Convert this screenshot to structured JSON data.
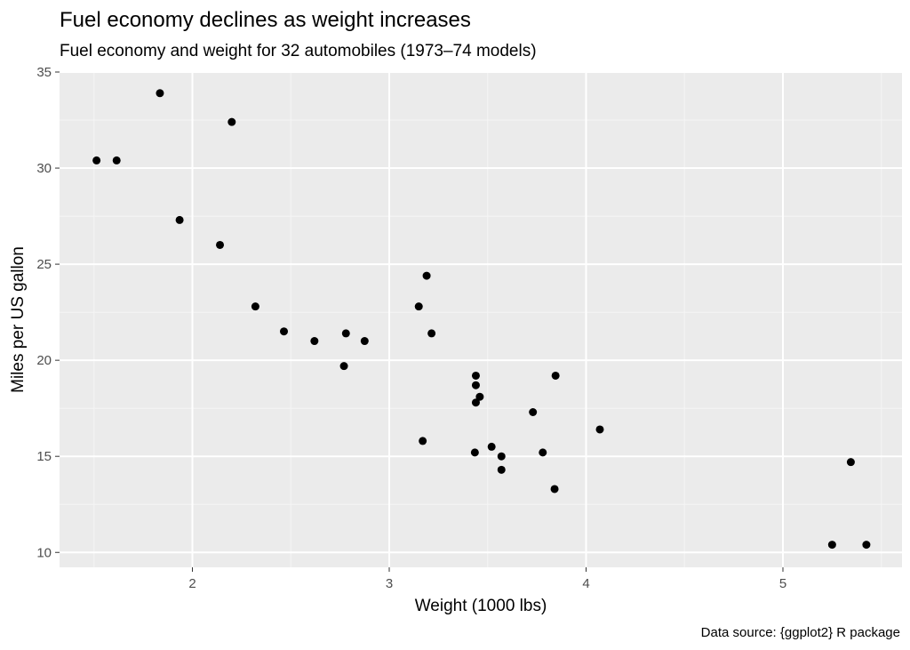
{
  "chart_data": {
    "type": "scatter",
    "title": "Fuel economy declines as weight increases",
    "subtitle": "Fuel economy and weight for 32 automobiles (1973–74 models)",
    "xlabel": "Weight (1000 lbs)",
    "ylabel": "Miles per US gallon",
    "caption": "Data source: {ggplot2} R package",
    "xlim": [
      1.325,
      5.605
    ],
    "ylim": [
      9.225,
      35.0
    ],
    "x_ticks": [
      2,
      3,
      4,
      5
    ],
    "x_tick_labels": [
      "2",
      "3",
      "4",
      "5"
    ],
    "y_ticks": [
      10,
      15,
      20,
      25,
      30,
      35
    ],
    "y_tick_labels": [
      "10",
      "15",
      "20",
      "25",
      "30",
      "35"
    ],
    "x_minor_ticks": [
      1.5,
      2.5,
      3.5,
      4.5,
      5.5
    ],
    "y_minor_ticks": [
      12.5,
      17.5,
      22.5,
      27.5,
      32.5
    ],
    "grid": true,
    "legend": "none",
    "points": [
      {
        "x": 2.62,
        "y": 21.0
      },
      {
        "x": 2.875,
        "y": 21.0
      },
      {
        "x": 2.32,
        "y": 22.8
      },
      {
        "x": 3.215,
        "y": 21.4
      },
      {
        "x": 3.44,
        "y": 18.7
      },
      {
        "x": 3.46,
        "y": 18.1
      },
      {
        "x": 3.57,
        "y": 14.3
      },
      {
        "x": 3.19,
        "y": 24.4
      },
      {
        "x": 3.15,
        "y": 22.8
      },
      {
        "x": 3.44,
        "y": 19.2
      },
      {
        "x": 3.44,
        "y": 17.8
      },
      {
        "x": 4.07,
        "y": 16.4
      },
      {
        "x": 3.73,
        "y": 17.3
      },
      {
        "x": 3.78,
        "y": 15.2
      },
      {
        "x": 5.25,
        "y": 10.4
      },
      {
        "x": 5.424,
        "y": 10.4
      },
      {
        "x": 5.345,
        "y": 14.7
      },
      {
        "x": 2.2,
        "y": 32.4
      },
      {
        "x": 1.615,
        "y": 30.4
      },
      {
        "x": 1.835,
        "y": 33.9
      },
      {
        "x": 2.465,
        "y": 21.5
      },
      {
        "x": 3.52,
        "y": 15.5
      },
      {
        "x": 3.435,
        "y": 15.2
      },
      {
        "x": 3.84,
        "y": 13.3
      },
      {
        "x": 3.845,
        "y": 19.2
      },
      {
        "x": 1.935,
        "y": 27.3
      },
      {
        "x": 2.14,
        "y": 26.0
      },
      {
        "x": 1.513,
        "y": 30.4
      },
      {
        "x": 3.17,
        "y": 15.8
      },
      {
        "x": 2.77,
        "y": 19.7
      },
      {
        "x": 3.57,
        "y": 15.0
      },
      {
        "x": 2.78,
        "y": 21.4
      }
    ],
    "colors": {
      "panel_background": "#ebebeb",
      "grid_major": "#ffffff",
      "grid_minor": "#f5f5f5",
      "point": "#000000",
      "tick": "#333333"
    }
  }
}
